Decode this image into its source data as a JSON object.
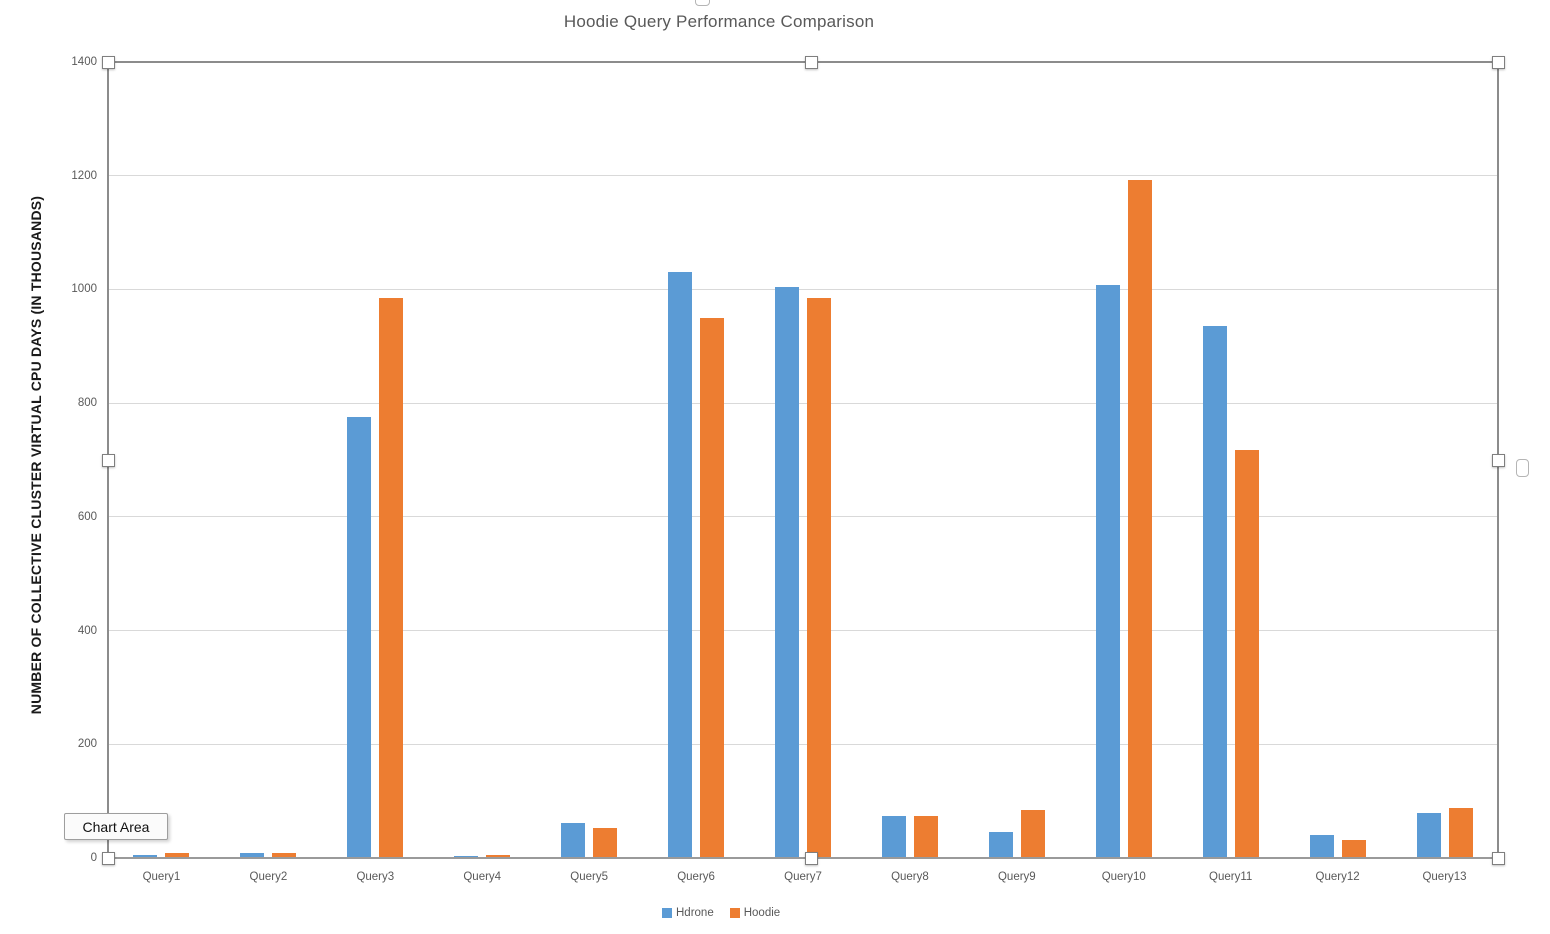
{
  "title": "Hoodie Query Performance Comparison",
  "tooltip": {
    "label": "Chart Area"
  },
  "y_axis": {
    "title": "NUMBER OF COLLECTIVE CLUSTER VIRTUAL CPU DAYS (IN THOUSANDS)",
    "ticks": [
      "0",
      "200",
      "400",
      "600",
      "800",
      "1000",
      "1200",
      "1400"
    ]
  },
  "legend": {
    "items": [
      {
        "label": "Hdrone",
        "color": "#5B9BD5"
      },
      {
        "label": "Hoodie",
        "color": "#ED7D31"
      }
    ]
  },
  "chart_data": {
    "type": "bar",
    "title": "Hoodie Query Performance Comparison",
    "categories": [
      "Query1",
      "Query2",
      "Query3",
      "Query4",
      "Query5",
      "Query6",
      "Query7",
      "Query8",
      "Query9",
      "Query10",
      "Query11",
      "Query12",
      "Query13"
    ],
    "series": [
      {
        "name": "Hdrone",
        "color": "#5B9BD5",
        "values": [
          5,
          8,
          775,
          4,
          62,
          1030,
          1005,
          73,
          46,
          1008,
          935,
          40,
          79
        ]
      },
      {
        "name": "Hoodie",
        "color": "#ED7D31",
        "values": [
          9,
          8,
          985,
          5,
          52,
          950,
          985,
          73,
          84,
          1193,
          717,
          32,
          88
        ]
      }
    ],
    "xlabel": "",
    "ylabel": "NUMBER OF COLLECTIVE CLUSTER VIRTUAL CPU DAYS (IN THOUSANDS)",
    "ylim": [
      0,
      1400
    ],
    "yticks": [
      0,
      200,
      400,
      600,
      800,
      1000,
      1200,
      1400
    ],
    "grid": true,
    "legend_position": "bottom"
  },
  "colors": {
    "series_blue": "#5B9BD5",
    "series_orange": "#ED7D31",
    "gridline": "#D9D9D9",
    "axis_text": "#595959",
    "selection_border": "#8C8C8C"
  }
}
